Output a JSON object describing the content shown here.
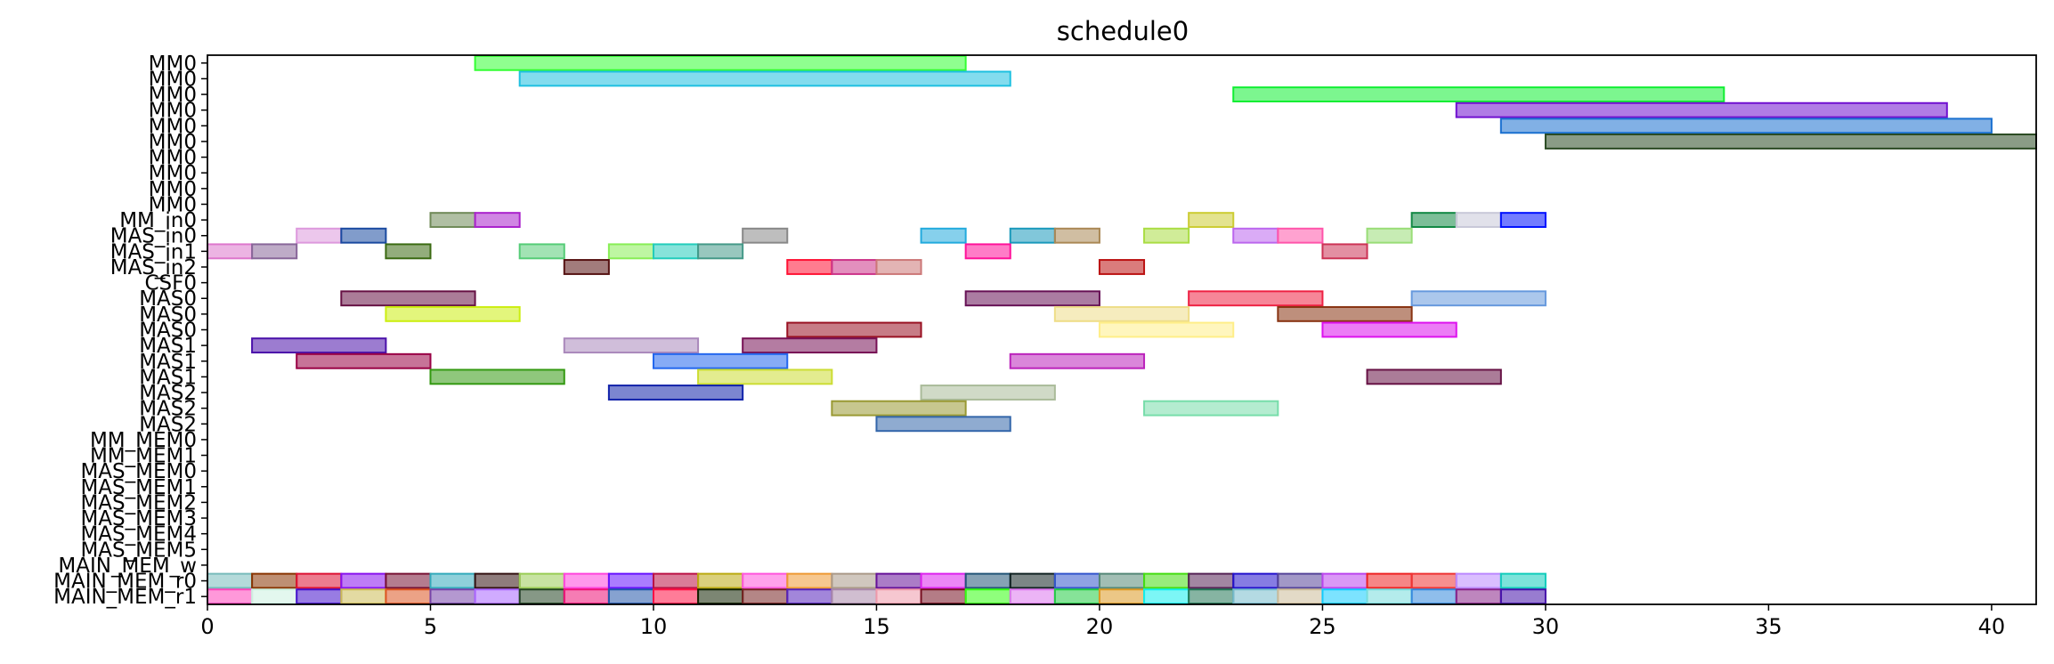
{
  "chart_data": {
    "type": "gantt",
    "title": "schedule0",
    "xlabel": "",
    "ylabel": "",
    "xlim": [
      0,
      41
    ],
    "xticks": [
      0,
      5,
      10,
      15,
      20,
      25,
      30,
      35,
      40
    ],
    "grid": false,
    "rows": [
      "MM0",
      "MM0",
      "MM0",
      "MM0",
      "MM0",
      "MM0",
      "MM0",
      "MM0",
      "MM0",
      "MM0",
      "MM_in0",
      "MAS_in0",
      "MAS_in1",
      "MAS_in2",
      "CSF0",
      "MAS0",
      "MAS0",
      "MAS0",
      "MAS1",
      "MAS1",
      "MAS1",
      "MAS2",
      "MAS2",
      "MAS2",
      "MM_MEM0",
      "MM_MEM1",
      "MAS_MEM0",
      "MAS_MEM1",
      "MAS_MEM2",
      "MAS_MEM3",
      "MAS_MEM4",
      "MAS_MEM5",
      "MAIN_MEM_w",
      "MAIN_MEM_r0",
      "MAIN_MEM_r1"
    ],
    "bars": [
      {
        "row": 0,
        "start": 6,
        "end": 17,
        "color": "#33ff33"
      },
      {
        "row": 1,
        "start": 7,
        "end": 18,
        "color": "#1ec0e0"
      },
      {
        "row": 2,
        "start": 23,
        "end": 34,
        "color": "#11ee33"
      },
      {
        "row": 3,
        "start": 28,
        "end": 39,
        "color": "#7010d0"
      },
      {
        "row": 4,
        "start": 29,
        "end": 40,
        "color": "#1a70d0"
      },
      {
        "row": 5,
        "start": 30,
        "end": 41,
        "color": "#2a4a22"
      },
      {
        "row": 10,
        "start": 5,
        "end": 6,
        "color": "#708a58"
      },
      {
        "row": 10,
        "start": 6,
        "end": 7,
        "color": "#aa22cc"
      },
      {
        "row": 10,
        "start": 22,
        "end": 23,
        "color": "#cccc33"
      },
      {
        "row": 10,
        "start": 27,
        "end": 28,
        "color": "#118844"
      },
      {
        "row": 10,
        "start": 28,
        "end": 29,
        "color": "#c8c8d8"
      },
      {
        "row": 10,
        "start": 29,
        "end": 30,
        "color": "#0010ff"
      },
      {
        "row": 11,
        "start": 2,
        "end": 3,
        "color": "#dd99dd"
      },
      {
        "row": 11,
        "start": 3,
        "end": 4,
        "color": "#1a4aa0"
      },
      {
        "row": 11,
        "start": 12,
        "end": 13,
        "color": "#888888"
      },
      {
        "row": 11,
        "start": 16,
        "end": 17,
        "color": "#22aadd"
      },
      {
        "row": 11,
        "start": 18,
        "end": 19,
        "color": "#1a99bb"
      },
      {
        "row": 11,
        "start": 19,
        "end": 20,
        "color": "#aa8855"
      },
      {
        "row": 11,
        "start": 21,
        "end": 22,
        "color": "#aadd44"
      },
      {
        "row": 11,
        "start": 23,
        "end": 24,
        "color": "#bb66ee"
      },
      {
        "row": 11,
        "start": 24,
        "end": 25,
        "color": "#ff55aa"
      },
      {
        "row": 11,
        "start": 26,
        "end": 27,
        "color": "#99dd77"
      },
      {
        "row": 12,
        "start": 0,
        "end": 1,
        "color": "#dd77cc"
      },
      {
        "row": 12,
        "start": 1,
        "end": 2,
        "color": "#886699"
      },
      {
        "row": 12,
        "start": 4,
        "end": 5,
        "color": "#3a6a11"
      },
      {
        "row": 12,
        "start": 7,
        "end": 8,
        "color": "#55cc77"
      },
      {
        "row": 12,
        "start": 9,
        "end": 10,
        "color": "#88ee55"
      },
      {
        "row": 12,
        "start": 10,
        "end": 11,
        "color": "#22ccbb"
      },
      {
        "row": 12,
        "start": 11,
        "end": 12,
        "color": "#449988"
      },
      {
        "row": 12,
        "start": 17,
        "end": 18,
        "color": "#ff1199"
      },
      {
        "row": 12,
        "start": 25,
        "end": 26,
        "color": "#cc3355"
      },
      {
        "row": 13,
        "start": 8,
        "end": 9,
        "color": "#551111"
      },
      {
        "row": 13,
        "start": 13,
        "end": 14,
        "color": "#ff1133"
      },
      {
        "row": 13,
        "start": 14,
        "end": 15,
        "color": "#cc3388"
      },
      {
        "row": 13,
        "start": 15,
        "end": 16,
        "color": "#cc7777"
      },
      {
        "row": 13,
        "start": 20,
        "end": 21,
        "color": "#bb1111"
      },
      {
        "row": 15,
        "start": 3,
        "end": 6,
        "color": "#661144"
      },
      {
        "row": 15,
        "start": 17,
        "end": 20,
        "color": "#661155"
      },
      {
        "row": 15,
        "start": 22,
        "end": 25,
        "color": "#ee2244"
      },
      {
        "row": 15,
        "start": 27,
        "end": 30,
        "color": "#6699dd"
      },
      {
        "row": 16,
        "start": 4,
        "end": 7,
        "color": "#ccee11"
      },
      {
        "row": 16,
        "start": 19,
        "end": 22,
        "color": "#eedd88"
      },
      {
        "row": 16,
        "start": 24,
        "end": 27,
        "color": "#883311"
      },
      {
        "row": 17,
        "start": 13,
        "end": 16,
        "color": "#991122"
      },
      {
        "row": 17,
        "start": 20,
        "end": 23,
        "color": "#ffee88"
      },
      {
        "row": 17,
        "start": 25,
        "end": 28,
        "color": "#dd11ee"
      },
      {
        "row": 18,
        "start": 1,
        "end": 4,
        "color": "#4a11aa"
      },
      {
        "row": 18,
        "start": 8,
        "end": 11,
        "color": "#aa88bb"
      },
      {
        "row": 18,
        "start": 12,
        "end": 15,
        "color": "#771155"
      },
      {
        "row": 19,
        "start": 2,
        "end": 5,
        "color": "#990044"
      },
      {
        "row": 19,
        "start": 10,
        "end": 13,
        "color": "#2266ee"
      },
      {
        "row": 19,
        "start": 18,
        "end": 21,
        "color": "#bb22bb"
      },
      {
        "row": 20,
        "start": 5,
        "end": 8,
        "color": "#339911"
      },
      {
        "row": 20,
        "start": 11,
        "end": 14,
        "color": "#ccdd33"
      },
      {
        "row": 20,
        "start": 26,
        "end": 29,
        "color": "#661144"
      },
      {
        "row": 21,
        "start": 9,
        "end": 12,
        "color": "#1122aa"
      },
      {
        "row": 21,
        "start": 16,
        "end": 19,
        "color": "#aabb99"
      },
      {
        "row": 22,
        "start": 14,
        "end": 17,
        "color": "#999933"
      },
      {
        "row": 22,
        "start": 21,
        "end": 24,
        "color": "#77ddaa"
      },
      {
        "row": 23,
        "start": 15,
        "end": 18,
        "color": "#3366aa"
      },
      {
        "row": 33,
        "start": 0,
        "end": 1,
        "color": "#77bbbb"
      },
      {
        "row": 33,
        "start": 1,
        "end": 2,
        "color": "#883300"
      },
      {
        "row": 33,
        "start": 2,
        "end": 3,
        "color": "#dd1133"
      },
      {
        "row": 33,
        "start": 3,
        "end": 4,
        "color": "#8811ee"
      },
      {
        "row": 33,
        "start": 4,
        "end": 5,
        "color": "#771133"
      },
      {
        "row": 33,
        "start": 5,
        "end": 6,
        "color": "#33aabb"
      },
      {
        "row": 33,
        "start": 6,
        "end": 7,
        "color": "#331111"
      },
      {
        "row": 33,
        "start": 7,
        "end": 8,
        "color": "#99cc55"
      },
      {
        "row": 33,
        "start": 8,
        "end": 9,
        "color": "#ff44dd"
      },
      {
        "row": 33,
        "start": 9,
        "end": 10,
        "color": "#6611ff"
      },
      {
        "row": 33,
        "start": 10,
        "end": 11,
        "color": "#bb1144"
      },
      {
        "row": 33,
        "start": 11,
        "end": 12,
        "color": "#bbaa11"
      },
      {
        "row": 33,
        "start": 12,
        "end": 13,
        "color": "#ff55dd"
      },
      {
        "row": 33,
        "start": 13,
        "end": 14,
        "color": "#ee9933"
      },
      {
        "row": 33,
        "start": 14,
        "end": 15,
        "color": "#aa9988"
      },
      {
        "row": 33,
        "start": 15,
        "end": 16,
        "color": "#661199"
      },
      {
        "row": 33,
        "start": 16,
        "end": 17,
        "color": "#dd22ee"
      },
      {
        "row": 33,
        "start": 17,
        "end": 18,
        "color": "#225577"
      },
      {
        "row": 33,
        "start": 18,
        "end": 19,
        "color": "#112222"
      },
      {
        "row": 33,
        "start": 19,
        "end": 20,
        "color": "#3355cc"
      },
      {
        "row": 33,
        "start": 20,
        "end": 21,
        "color": "#558877"
      },
      {
        "row": 33,
        "start": 21,
        "end": 22,
        "color": "#44dd11"
      },
      {
        "row": 33,
        "start": 22,
        "end": 23,
        "color": "#552255"
      },
      {
        "row": 33,
        "start": 23,
        "end": 24,
        "color": "#2211cc"
      },
      {
        "row": 33,
        "start": 24,
        "end": 25,
        "color": "#554499"
      },
      {
        "row": 33,
        "start": 25,
        "end": 26,
        "color": "#bb44ee"
      },
      {
        "row": 33,
        "start": 26,
        "end": 27,
        "color": "#ee2222"
      },
      {
        "row": 33,
        "start": 27,
        "end": 28,
        "color": "#ee3333"
      },
      {
        "row": 33,
        "start": 28,
        "end": 29,
        "color": "#bb88ff"
      },
      {
        "row": 33,
        "start": 29,
        "end": 30,
        "color": "#11ccbb"
      },
      {
        "row": 34,
        "start": 0,
        "end": 1,
        "color": "#ff44bb"
      },
      {
        "row": 34,
        "start": 1,
        "end": 2,
        "color": "#ccf0e0"
      },
      {
        "row": 34,
        "start": 2,
        "end": 3,
        "color": "#4411cc"
      },
      {
        "row": 34,
        "start": 3,
        "end": 4,
        "color": "#ccbb55"
      },
      {
        "row": 34,
        "start": 4,
        "end": 5,
        "color": "#dd5522"
      },
      {
        "row": 34,
        "start": 5,
        "end": 6,
        "color": "#7744aa"
      },
      {
        "row": 34,
        "start": 6,
        "end": 7,
        "color": "#aa66ff"
      },
      {
        "row": 34,
        "start": 7,
        "end": 8,
        "color": "#224422"
      },
      {
        "row": 34,
        "start": 8,
        "end": 9,
        "color": "#ee1177"
      },
      {
        "row": 34,
        "start": 9,
        "end": 10,
        "color": "#2255aa"
      },
      {
        "row": 34,
        "start": 10,
        "end": 11,
        "color": "#ff1144"
      },
      {
        "row": 34,
        "start": 11,
        "end": 12,
        "color": "#112200"
      },
      {
        "row": 34,
        "start": 12,
        "end": 13,
        "color": "#772222"
      },
      {
        "row": 34,
        "start": 13,
        "end": 14,
        "color": "#5522bb"
      },
      {
        "row": 34,
        "start": 14,
        "end": 15,
        "color": "#aa88aa"
      },
      {
        "row": 34,
        "start": 15,
        "end": 16,
        "color": "#ee99aa"
      },
      {
        "row": 34,
        "start": 16,
        "end": 17,
        "color": "#771122"
      },
      {
        "row": 34,
        "start": 17,
        "end": 18,
        "color": "#33ff11"
      },
      {
        "row": 34,
        "start": 18,
        "end": 19,
        "color": "#dd77ee"
      },
      {
        "row": 34,
        "start": 19,
        "end": 20,
        "color": "#22cc44"
      },
      {
        "row": 34,
        "start": 20,
        "end": 21,
        "color": "#dd9922"
      },
      {
        "row": 34,
        "start": 21,
        "end": 22,
        "color": "#11eeee"
      },
      {
        "row": 34,
        "start": 22,
        "end": 23,
        "color": "#227755"
      },
      {
        "row": 34,
        "start": 23,
        "end": 24,
        "color": "#77bbcc"
      },
      {
        "row": 34,
        "start": 24,
        "end": 25,
        "color": "#ccbb99"
      },
      {
        "row": 34,
        "start": 25,
        "end": 26,
        "color": "#11ccff"
      },
      {
        "row": 34,
        "start": 26,
        "end": 27,
        "color": "#77dddd"
      },
      {
        "row": 34,
        "start": 27,
        "end": 28,
        "color": "#3388dd"
      },
      {
        "row": 34,
        "start": 28,
        "end": 29,
        "color": "#882288"
      },
      {
        "row": 34,
        "start": 29,
        "end": 30,
        "color": "#4411aa"
      }
    ]
  }
}
